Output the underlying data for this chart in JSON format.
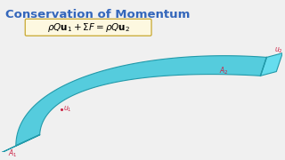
{
  "title": "Conservation of Momentum",
  "title_color": "#3366bb",
  "title_fontsize": 9.5,
  "formula": "$\\rho Q\\mathbf{u}_1 + \\Sigma F = \\rho Q\\mathbf{u}_2$",
  "formula_fontsize": 7.5,
  "formula_box_color": "#fdf8e0",
  "formula_box_edge": "#c8a830",
  "bg_color": "#f0f0f0",
  "pipe_fill": "#55ccdd",
  "pipe_edge": "#229aaa",
  "cap_fill": "#66ddee",
  "cap_edge": "#229aaa",
  "label_color": "#cc2244",
  "label_fontsize": 5.5,
  "A1_label": "$A_1$",
  "A2_label": "$A_2$",
  "u1_label": "$u_1$",
  "u2_label": "$u_2$"
}
